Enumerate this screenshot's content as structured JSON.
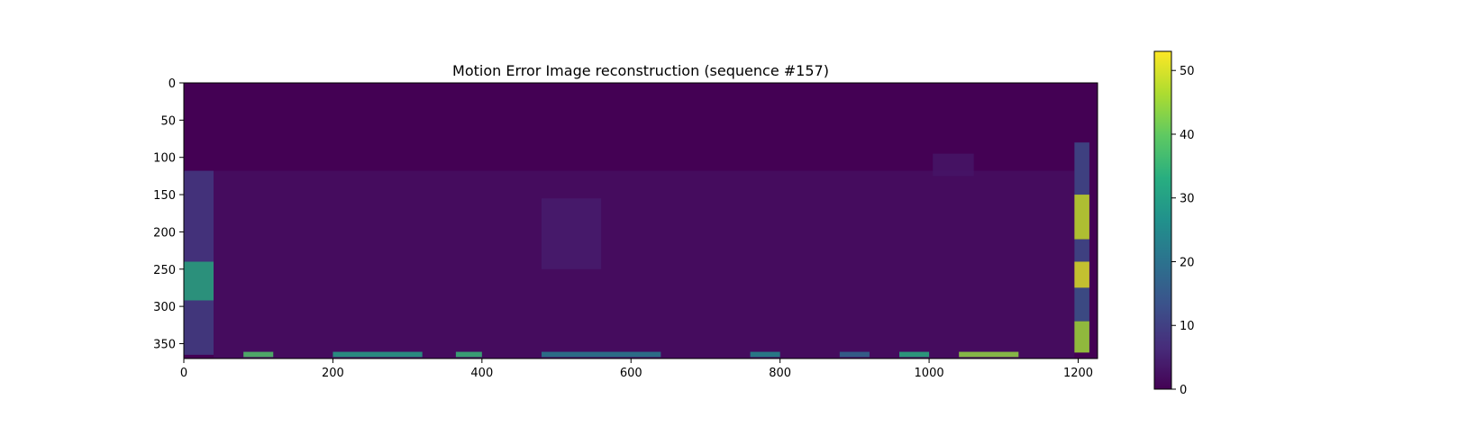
{
  "chart_data": {
    "type": "heatmap",
    "title": "Motion Error Image reconstruction (sequence #157)",
    "xlabel": "",
    "ylabel": "",
    "xlim": [
      0,
      1226
    ],
    "ylim": [
      0,
      370
    ],
    "y_inverted": true,
    "x_ticks": [
      0,
      200,
      400,
      600,
      800,
      1000,
      1200
    ],
    "y_ticks": [
      0,
      50,
      100,
      150,
      200,
      250,
      300,
      350
    ],
    "x_tick_labels": [
      "0",
      "200",
      "400",
      "600",
      "800",
      "1000",
      "1200"
    ],
    "y_tick_labels": [
      "0",
      "50",
      "100",
      "150",
      "200",
      "250",
      "300",
      "350"
    ],
    "colormap": "viridis",
    "vmin": 0,
    "vmax": 53,
    "background_value": 0,
    "colorbar_ticks": [
      0,
      10,
      20,
      30,
      40,
      50
    ],
    "colorbar_tick_labels": [
      "0",
      "10",
      "20",
      "30",
      "40",
      "50"
    ],
    "regions": [
      {
        "x": [
          0,
          40
        ],
        "y": [
          118,
          240
        ],
        "level": 9
      },
      {
        "x": [
          0,
          40
        ],
        "y": [
          240,
          292
        ],
        "level": 32
      },
      {
        "x": [
          0,
          40
        ],
        "y": [
          292,
          365
        ],
        "level": 10
      },
      {
        "x": [
          40,
          1195
        ],
        "y": [
          118,
          370
        ],
        "level": 2
      },
      {
        "x": [
          480,
          560
        ],
        "y": [
          155,
          250
        ],
        "level": 4
      },
      {
        "x": [
          1005,
          1060
        ],
        "y": [
          95,
          125
        ],
        "level": 3
      },
      {
        "x": [
          1195,
          1215
        ],
        "y": [
          80,
          150
        ],
        "level": 12
      },
      {
        "x": [
          1195,
          1215
        ],
        "y": [
          150,
          210
        ],
        "level": 48
      },
      {
        "x": [
          1195,
          1215
        ],
        "y": [
          210,
          240
        ],
        "level": 12
      },
      {
        "x": [
          1195,
          1215
        ],
        "y": [
          240,
          275
        ],
        "level": 50
      },
      {
        "x": [
          1195,
          1215
        ],
        "y": [
          275,
          320
        ],
        "level": 14
      },
      {
        "x": [
          1195,
          1215
        ],
        "y": [
          320,
          362
        ],
        "level": 45
      },
      {
        "x": [
          80,
          120
        ],
        "y": [
          361,
          368
        ],
        "level": 38
      },
      {
        "x": [
          200,
          320
        ],
        "y": [
          361,
          368
        ],
        "level": 30
      },
      {
        "x": [
          365,
          400
        ],
        "y": [
          361,
          368
        ],
        "level": 35
      },
      {
        "x": [
          480,
          640
        ],
        "y": [
          361,
          368
        ],
        "level": 22
      },
      {
        "x": [
          760,
          800
        ],
        "y": [
          361,
          368
        ],
        "level": 25
      },
      {
        "x": [
          880,
          920
        ],
        "y": [
          361,
          368
        ],
        "level": 18
      },
      {
        "x": [
          960,
          1000
        ],
        "y": [
          361,
          368
        ],
        "level": 33
      },
      {
        "x": [
          1040,
          1120
        ],
        "y": [
          361,
          368
        ],
        "level": 44
      }
    ]
  }
}
